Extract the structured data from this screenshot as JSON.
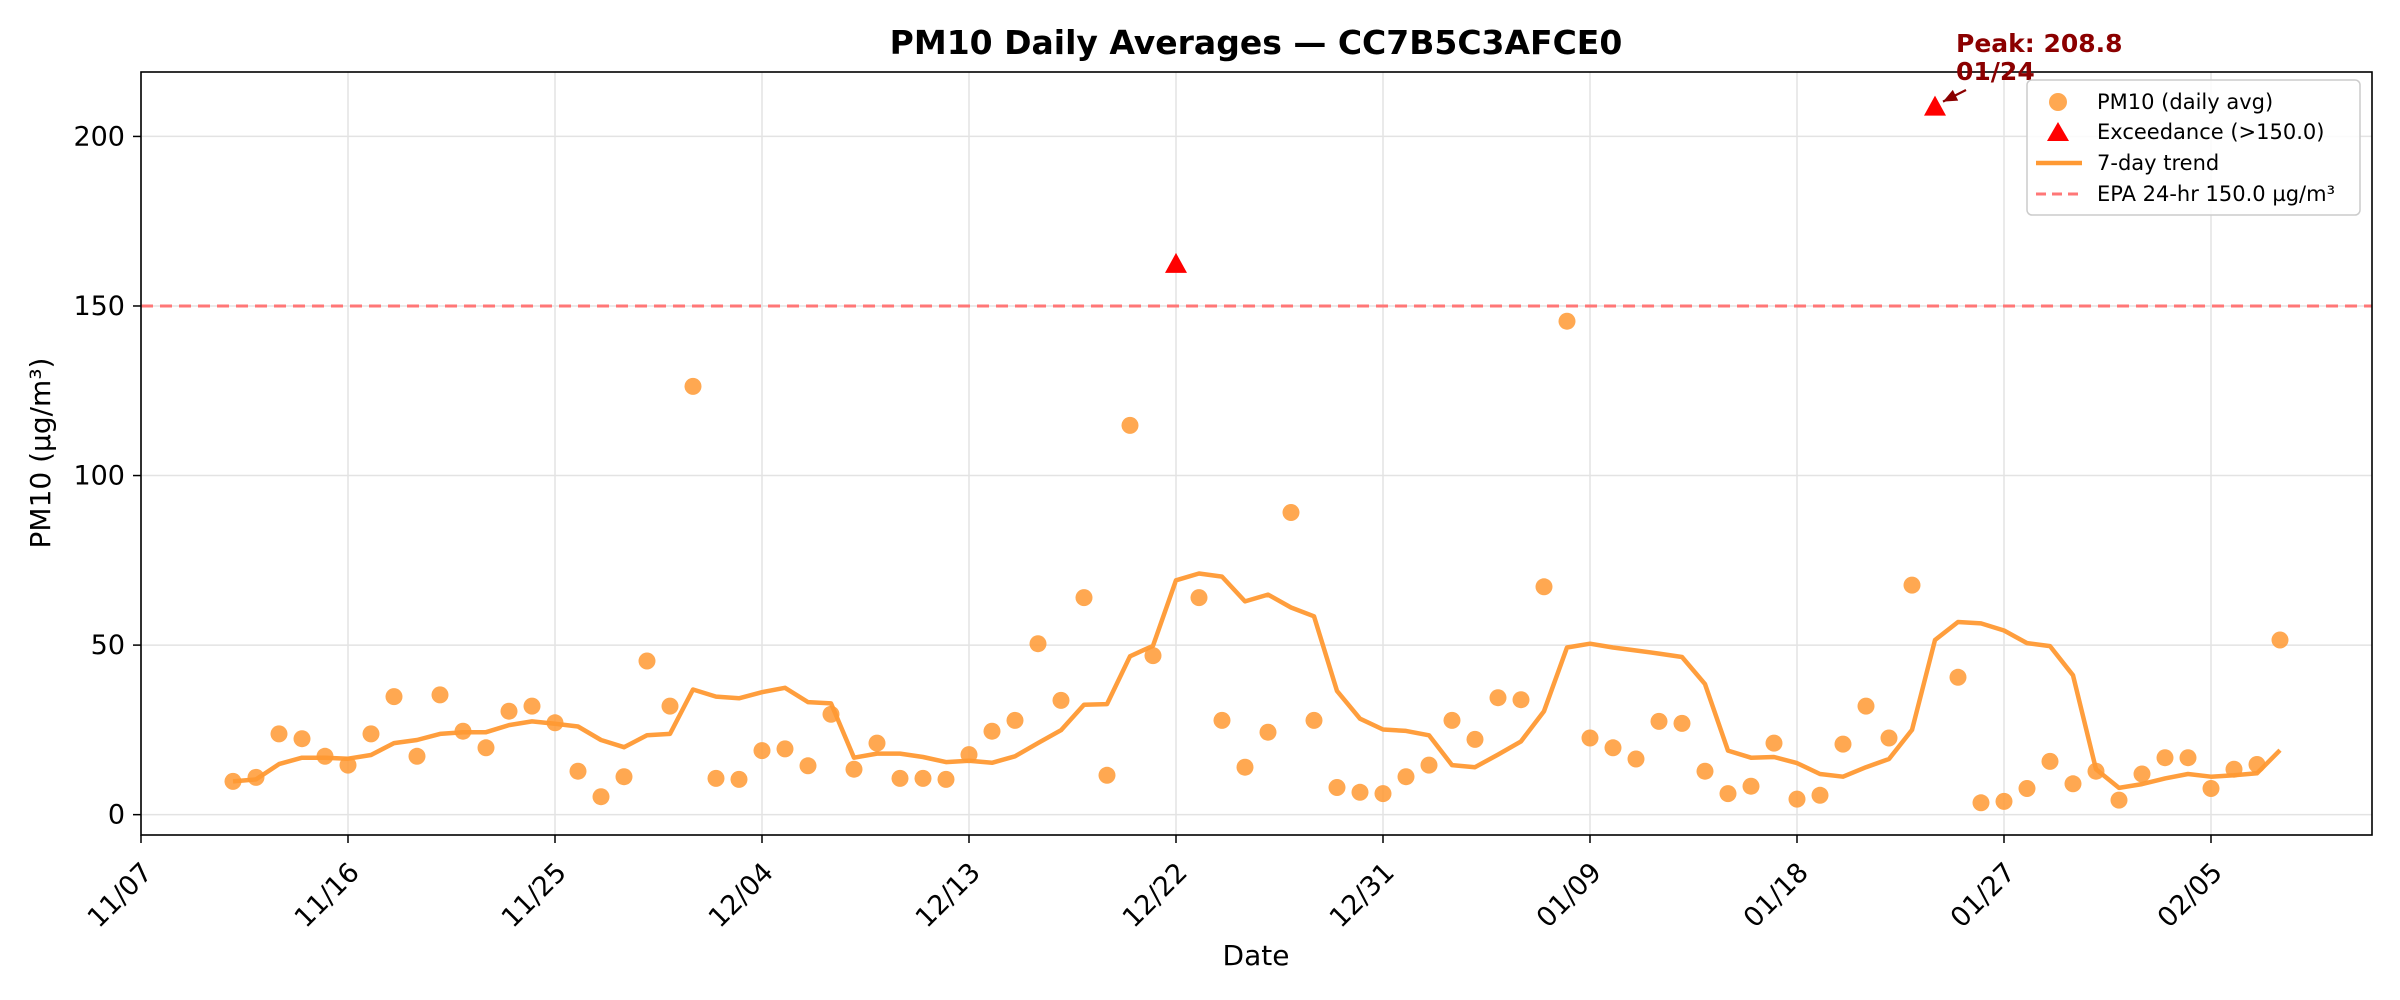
{
  "chart_data": {
    "type": "scatter",
    "title": "PM10 Daily Averages — CC7B5C3AFCE0",
    "xlabel": "Date",
    "ylabel": "PM10 (µg/m³)",
    "x_domain": [
      "2023-11-07",
      "2024-02-12"
    ],
    "ylim": [
      -6,
      219
    ],
    "x_ticks": [
      {
        "date": "2023-11-07",
        "label": "11/07"
      },
      {
        "date": "2023-11-16",
        "label": "11/16"
      },
      {
        "date": "2023-11-25",
        "label": "11/25"
      },
      {
        "date": "2023-12-04",
        "label": "12/04"
      },
      {
        "date": "2023-12-13",
        "label": "12/13"
      },
      {
        "date": "2023-12-22",
        "label": "12/22"
      },
      {
        "date": "2023-12-31",
        "label": "12/31"
      },
      {
        "date": "2024-01-09",
        "label": "01/09"
      },
      {
        "date": "2024-01-18",
        "label": "01/18"
      },
      {
        "date": "2024-01-27",
        "label": "01/27"
      },
      {
        "date": "2024-02-05",
        "label": "02/05"
      }
    ],
    "y_ticks": [
      0,
      50,
      100,
      150,
      200
    ],
    "grid": true,
    "legend_position": "top-right",
    "colors": {
      "points": "#ff9933",
      "trend": "#ff9933",
      "exceedance": "#ff0000",
      "threshold": "#ff7777",
      "annotation": "#8b0000"
    },
    "series": [
      {
        "name": "PM10 (daily avg)",
        "kind": "scatter",
        "points": [
          {
            "x": "2023-11-11",
            "y": 9.8
          },
          {
            "x": "2023-11-12",
            "y": 11.0
          },
          {
            "x": "2023-11-13",
            "y": 23.8
          },
          {
            "x": "2023-11-14",
            "y": 22.4
          },
          {
            "x": "2023-11-15",
            "y": 17.2
          },
          {
            "x": "2023-11-16",
            "y": 14.6
          },
          {
            "x": "2023-11-17",
            "y": 23.8
          },
          {
            "x": "2023-11-18",
            "y": 34.8
          },
          {
            "x": "2023-11-19",
            "y": 17.2
          },
          {
            "x": "2023-11-20",
            "y": 35.3
          },
          {
            "x": "2023-11-21",
            "y": 24.6
          },
          {
            "x": "2023-11-22",
            "y": 19.7
          },
          {
            "x": "2023-11-23",
            "y": 30.5
          },
          {
            "x": "2023-11-24",
            "y": 32.0
          },
          {
            "x": "2023-11-25",
            "y": 27.1
          },
          {
            "x": "2023-11-26",
            "y": 12.8
          },
          {
            "x": "2023-11-27",
            "y": 5.3
          },
          {
            "x": "2023-11-28",
            "y": 11.2
          },
          {
            "x": "2023-11-29",
            "y": 45.3
          },
          {
            "x": "2023-11-30",
            "y": 32.0
          },
          {
            "x": "2023-12-01",
            "y": 126.3
          },
          {
            "x": "2023-12-02",
            "y": 10.7
          },
          {
            "x": "2023-12-03",
            "y": 10.4
          },
          {
            "x": "2023-12-04",
            "y": 18.9
          },
          {
            "x": "2023-12-05",
            "y": 19.4
          },
          {
            "x": "2023-12-06",
            "y": 14.4
          },
          {
            "x": "2023-12-07",
            "y": 29.6
          },
          {
            "x": "2023-12-08",
            "y": 13.4
          },
          {
            "x": "2023-12-09",
            "y": 21.1
          },
          {
            "x": "2023-12-10",
            "y": 10.7
          },
          {
            "x": "2023-12-11",
            "y": 10.7
          },
          {
            "x": "2023-12-12",
            "y": 10.4
          },
          {
            "x": "2023-12-13",
            "y": 17.7
          },
          {
            "x": "2023-12-14",
            "y": 24.6
          },
          {
            "x": "2023-12-15",
            "y": 27.8
          },
          {
            "x": "2023-12-16",
            "y": 50.4
          },
          {
            "x": "2023-12-17",
            "y": 33.7
          },
          {
            "x": "2023-12-18",
            "y": 64.0
          },
          {
            "x": "2023-12-19",
            "y": 11.6
          },
          {
            "x": "2023-12-20",
            "y": 114.8
          },
          {
            "x": "2023-12-21",
            "y": 46.9
          },
          {
            "x": "2023-12-23",
            "y": 64.0
          },
          {
            "x": "2023-12-24",
            "y": 27.8
          },
          {
            "x": "2023-12-25",
            "y": 14.0
          },
          {
            "x": "2023-12-26",
            "y": 24.3
          },
          {
            "x": "2023-12-27",
            "y": 89.1
          },
          {
            "x": "2023-12-28",
            "y": 27.8
          },
          {
            "x": "2023-12-29",
            "y": 8.0
          },
          {
            "x": "2023-12-30",
            "y": 6.6
          },
          {
            "x": "2023-12-31",
            "y": 6.2
          },
          {
            "x": "2024-01-01",
            "y": 11.2
          },
          {
            "x": "2024-01-02",
            "y": 14.6
          },
          {
            "x": "2024-01-03",
            "y": 27.8
          },
          {
            "x": "2024-01-04",
            "y": 22.2
          },
          {
            "x": "2024-01-05",
            "y": 34.5
          },
          {
            "x": "2024-01-06",
            "y": 33.9
          },
          {
            "x": "2024-01-07",
            "y": 67.2
          },
          {
            "x": "2024-01-08",
            "y": 145.5
          },
          {
            "x": "2024-01-09",
            "y": 22.6
          },
          {
            "x": "2024-01-10",
            "y": 19.7
          },
          {
            "x": "2024-01-11",
            "y": 16.4
          },
          {
            "x": "2024-01-12",
            "y": 27.5
          },
          {
            "x": "2024-01-13",
            "y": 26.9
          },
          {
            "x": "2024-01-14",
            "y": 12.8
          },
          {
            "x": "2024-01-15",
            "y": 6.2
          },
          {
            "x": "2024-01-16",
            "y": 8.4
          },
          {
            "x": "2024-01-17",
            "y": 21.1
          },
          {
            "x": "2024-01-18",
            "y": 4.6
          },
          {
            "x": "2024-01-19",
            "y": 5.7
          },
          {
            "x": "2024-01-20",
            "y": 20.8
          },
          {
            "x": "2024-01-21",
            "y": 32.0
          },
          {
            "x": "2024-01-22",
            "y": 22.6
          },
          {
            "x": "2024-01-23",
            "y": 67.7
          },
          {
            "x": "2024-01-25",
            "y": 40.5
          },
          {
            "x": "2024-01-26",
            "y": 3.5
          },
          {
            "x": "2024-01-27",
            "y": 3.9
          },
          {
            "x": "2024-01-28",
            "y": 7.7
          },
          {
            "x": "2024-01-29",
            "y": 15.7
          },
          {
            "x": "2024-01-30",
            "y": 9.1
          },
          {
            "x": "2024-01-31",
            "y": 12.8
          },
          {
            "x": "2024-02-01",
            "y": 4.3
          },
          {
            "x": "2024-02-02",
            "y": 12.0
          },
          {
            "x": "2024-02-03",
            "y": 16.8
          },
          {
            "x": "2024-02-04",
            "y": 16.8
          },
          {
            "x": "2024-02-05",
            "y": 7.7
          },
          {
            "x": "2024-02-06",
            "y": 13.4
          },
          {
            "x": "2024-02-07",
            "y": 14.8
          },
          {
            "x": "2024-02-08",
            "y": 51.5
          }
        ]
      },
      {
        "name": "Exceedance (>150.0)",
        "kind": "marker-triangle",
        "points": [
          {
            "x": "2023-12-22",
            "y": 162.4
          },
          {
            "x": "2024-01-24",
            "y": 208.8
          }
        ]
      },
      {
        "name": "7-day trend",
        "kind": "line",
        "points": [
          {
            "x": "2023-11-11",
            "y": 9.8
          },
          {
            "x": "2023-11-12",
            "y": 10.4
          },
          {
            "x": "2023-11-13",
            "y": 14.9
          },
          {
            "x": "2023-11-14",
            "y": 16.8
          },
          {
            "x": "2023-11-15",
            "y": 16.8
          },
          {
            "x": "2023-11-16",
            "y": 16.5
          },
          {
            "x": "2023-11-17",
            "y": 17.6
          },
          {
            "x": "2023-11-18",
            "y": 21.1
          },
          {
            "x": "2023-11-19",
            "y": 22.0
          },
          {
            "x": "2023-11-20",
            "y": 23.8
          },
          {
            "x": "2023-11-21",
            "y": 24.3
          },
          {
            "x": "2023-11-22",
            "y": 24.3
          },
          {
            "x": "2023-11-23",
            "y": 26.4
          },
          {
            "x": "2023-11-24",
            "y": 27.5
          },
          {
            "x": "2023-11-25",
            "y": 26.8
          },
          {
            "x": "2023-11-26",
            "y": 26.0
          },
          {
            "x": "2023-11-27",
            "y": 22.0
          },
          {
            "x": "2023-11-28",
            "y": 19.9
          },
          {
            "x": "2023-11-29",
            "y": 23.4
          },
          {
            "x": "2023-11-30",
            "y": 23.8
          },
          {
            "x": "2023-12-01",
            "y": 36.9
          },
          {
            "x": "2023-12-02",
            "y": 34.8
          },
          {
            "x": "2023-12-03",
            "y": 34.3
          },
          {
            "x": "2023-12-04",
            "y": 36.1
          },
          {
            "x": "2023-12-05",
            "y": 37.4
          },
          {
            "x": "2023-12-06",
            "y": 33.2
          },
          {
            "x": "2023-12-07",
            "y": 32.8
          },
          {
            "x": "2023-12-08",
            "y": 16.8
          },
          {
            "x": "2023-12-09",
            "y": 18.0
          },
          {
            "x": "2023-12-10",
            "y": 18.0
          },
          {
            "x": "2023-12-11",
            "y": 17.0
          },
          {
            "x": "2023-12-12",
            "y": 15.5
          },
          {
            "x": "2023-12-13",
            "y": 15.9
          },
          {
            "x": "2023-12-14",
            "y": 15.3
          },
          {
            "x": "2023-12-15",
            "y": 17.2
          },
          {
            "x": "2023-12-16",
            "y": 21.1
          },
          {
            "x": "2023-12-17",
            "y": 24.9
          },
          {
            "x": "2023-12-18",
            "y": 32.4
          },
          {
            "x": "2023-12-19",
            "y": 32.6
          },
          {
            "x": "2023-12-20",
            "y": 46.7
          },
          {
            "x": "2023-12-21",
            "y": 49.8
          },
          {
            "x": "2023-12-22",
            "y": 69.1
          },
          {
            "x": "2023-12-23",
            "y": 71.1
          },
          {
            "x": "2023-12-24",
            "y": 70.2
          },
          {
            "x": "2023-12-25",
            "y": 62.9
          },
          {
            "x": "2023-12-26",
            "y": 64.9
          },
          {
            "x": "2023-12-27",
            "y": 61.1
          },
          {
            "x": "2023-12-28",
            "y": 58.5
          },
          {
            "x": "2023-12-29",
            "y": 36.5
          },
          {
            "x": "2023-12-30",
            "y": 28.3
          },
          {
            "x": "2023-12-31",
            "y": 25.1
          },
          {
            "x": "2024-01-01",
            "y": 24.7
          },
          {
            "x": "2024-01-02",
            "y": 23.4
          },
          {
            "x": "2024-01-03",
            "y": 14.6
          },
          {
            "x": "2024-01-04",
            "y": 14.0
          },
          {
            "x": "2024-01-05",
            "y": 17.7
          },
          {
            "x": "2024-01-06",
            "y": 21.6
          },
          {
            "x": "2024-01-07",
            "y": 30.5
          },
          {
            "x": "2024-01-08",
            "y": 49.3
          },
          {
            "x": "2024-01-09",
            "y": 50.4
          },
          {
            "x": "2024-01-10",
            "y": 49.3
          },
          {
            "x": "2024-01-11",
            "y": 48.4
          },
          {
            "x": "2024-01-12",
            "y": 47.5
          },
          {
            "x": "2024-01-13",
            "y": 46.5
          },
          {
            "x": "2024-01-14",
            "y": 38.5
          },
          {
            "x": "2024-01-15",
            "y": 18.9
          },
          {
            "x": "2024-01-16",
            "y": 16.8
          },
          {
            "x": "2024-01-17",
            "y": 17.0
          },
          {
            "x": "2024-01-18",
            "y": 15.2
          },
          {
            "x": "2024-01-19",
            "y": 12.0
          },
          {
            "x": "2024-01-20",
            "y": 11.2
          },
          {
            "x": "2024-01-21",
            "y": 14.0
          },
          {
            "x": "2024-01-22",
            "y": 16.4
          },
          {
            "x": "2024-01-23",
            "y": 25.0
          },
          {
            "x": "2024-01-24",
            "y": 51.5
          },
          {
            "x": "2024-01-25",
            "y": 56.8
          },
          {
            "x": "2024-01-26",
            "y": 56.4
          },
          {
            "x": "2024-01-27",
            "y": 54.3
          },
          {
            "x": "2024-01-28",
            "y": 50.6
          },
          {
            "x": "2024-01-29",
            "y": 49.7
          },
          {
            "x": "2024-01-30",
            "y": 41.1
          },
          {
            "x": "2024-01-31",
            "y": 13.4
          },
          {
            "x": "2024-02-01",
            "y": 7.9
          },
          {
            "x": "2024-02-02",
            "y": 9.0
          },
          {
            "x": "2024-02-03",
            "y": 10.7
          },
          {
            "x": "2024-02-04",
            "y": 12.0
          },
          {
            "x": "2024-02-05",
            "y": 11.2
          },
          {
            "x": "2024-02-06",
            "y": 11.6
          },
          {
            "x": "2024-02-07",
            "y": 12.2
          },
          {
            "x": "2024-02-08",
            "y": 19.0
          }
        ]
      },
      {
        "name": "EPA 24-hr 150.0 µg/m³",
        "kind": "hline-dashed",
        "y": 150
      }
    ],
    "annotation": {
      "line1": "Peak: 208.8",
      "line2": "01/24",
      "target": {
        "x": "2024-01-24",
        "y": 208.8
      }
    }
  }
}
